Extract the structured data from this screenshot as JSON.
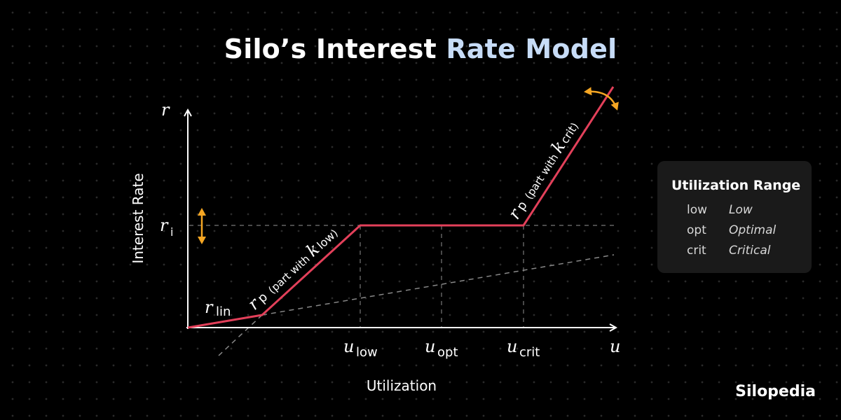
{
  "title_part1": "Silo’s Interest ",
  "title_part2": "Rate Model",
  "axes": {
    "y_symbol": "r",
    "x_symbol": "u",
    "y_label": "Interest Rate",
    "x_label": "Utilization"
  },
  "ticks": {
    "ri": {
      "symbol": "r",
      "sub": "i"
    },
    "u_low": {
      "symbol": "u",
      "sub": "low"
    },
    "u_opt": {
      "symbol": "u",
      "sub": "opt"
    },
    "u_crit": {
      "symbol": "u",
      "sub": "crit"
    }
  },
  "curve_labels": {
    "lin": {
      "symbol": "r",
      "sub": "lin"
    },
    "p_low": {
      "symbol": "r",
      "sub": "p",
      "text_before": "(part with ",
      "k": "k",
      "k_sub": "low",
      "text_after": ")"
    },
    "p_crit": {
      "symbol": "r",
      "sub": "p",
      "text_before": "(part with ",
      "k": "k",
      "k_sub": "crit",
      "text_after": ")"
    }
  },
  "legend": {
    "title": "Utilization Range",
    "rows": [
      {
        "abbr": "low",
        "name": "Low"
      },
      {
        "abbr": "opt",
        "name": "Optimal"
      },
      {
        "abbr": "crit",
        "name": "Critical"
      }
    ]
  },
  "brand": "Silopedia",
  "colors": {
    "curve": "#e3405a",
    "arrow": "#f5a623",
    "axis": "#ffffff",
    "dashed": "#777777"
  }
}
